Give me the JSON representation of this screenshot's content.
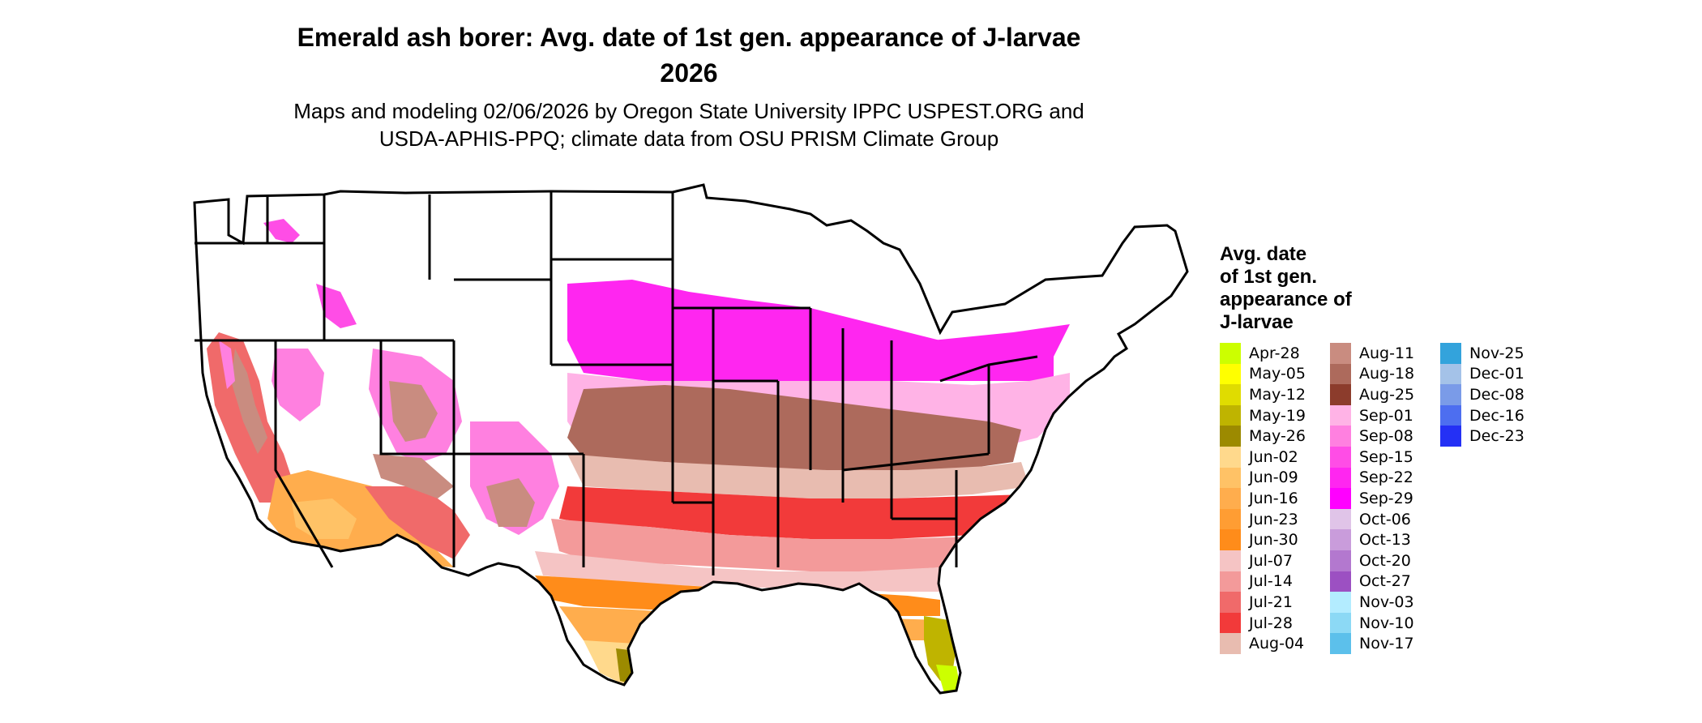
{
  "title": "Emerald ash borer: Avg. date of 1st gen. appearance of J-larvae",
  "year": "2026",
  "subtitle_line1": "Maps and modeling 02/06/2026 by Oregon State University IPPC USPEST.ORG and",
  "subtitle_line2": "USDA-APHIS-PPQ; climate data from OSU PRISM Climate Group",
  "legend": {
    "title": "Avg. date\nof 1st gen.\nappearance of\nJ-larvae",
    "columns": [
      [
        {
          "label": "Apr-28",
          "color": "#ccff00"
        },
        {
          "label": "May-05",
          "color": "#ffff00"
        },
        {
          "label": "May-12",
          "color": "#e0dc00"
        },
        {
          "label": "May-19",
          "color": "#bfb400"
        },
        {
          "label": "May-26",
          "color": "#9c8a00"
        },
        {
          "label": "Jun-02",
          "color": "#ffd98c"
        },
        {
          "label": "Jun-09",
          "color": "#ffc266"
        },
        {
          "label": "Jun-16",
          "color": "#ffad4d"
        },
        {
          "label": "Jun-23",
          "color": "#ff9d33"
        },
        {
          "label": "Jun-30",
          "color": "#ff8c1a"
        },
        {
          "label": "Jul-07",
          "color": "#f5c4c4"
        },
        {
          "label": "Jul-14",
          "color": "#f39a9a"
        },
        {
          "label": "Jul-21",
          "color": "#f06a6a"
        },
        {
          "label": "Jul-28",
          "color": "#f23a3a"
        },
        {
          "label": "Aug-04",
          "color": "#e8bcb0"
        }
      ],
      [
        {
          "label": "Aug-11",
          "color": "#c98c80"
        },
        {
          "label": "Aug-18",
          "color": "#ad6a5c"
        },
        {
          "label": "Aug-25",
          "color": "#8c3c2c"
        },
        {
          "label": "Sep-01",
          "color": "#ffb3e6"
        },
        {
          "label": "Sep-08",
          "color": "#ff80e0"
        },
        {
          "label": "Sep-15",
          "color": "#ff4de6"
        },
        {
          "label": "Sep-22",
          "color": "#ff26f0"
        },
        {
          "label": "Sep-29",
          "color": "#ff00ff"
        },
        {
          "label": "Oct-06",
          "color": "#e0c4e8"
        },
        {
          "label": "Oct-13",
          "color": "#c99cdb"
        },
        {
          "label": "Oct-20",
          "color": "#b378cf"
        },
        {
          "label": "Oct-27",
          "color": "#9c50c2"
        },
        {
          "label": "Nov-03",
          "color": "#b3ecff"
        },
        {
          "label": "Nov-10",
          "color": "#8cd9f5"
        },
        {
          "label": "Nov-17",
          "color": "#5cc0eb"
        }
      ],
      [
        {
          "label": "Nov-25",
          "color": "#33a3dc"
        },
        {
          "label": "Dec-01",
          "color": "#a4c2e8"
        },
        {
          "label": "Dec-08",
          "color": "#7a9be8"
        },
        {
          "label": "Dec-16",
          "color": "#4d6ef0"
        },
        {
          "label": "Dec-23",
          "color": "#2430f5"
        }
      ]
    ]
  }
}
